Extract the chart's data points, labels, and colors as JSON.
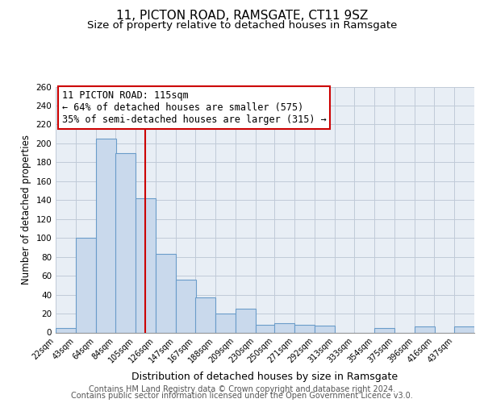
{
  "title1": "11, PICTON ROAD, RAMSGATE, CT11 9SZ",
  "title2": "Size of property relative to detached houses in Ramsgate",
  "xlabel": "Distribution of detached houses by size in Ramsgate",
  "ylabel": "Number of detached properties",
  "bin_labels": [
    "22sqm",
    "43sqm",
    "64sqm",
    "84sqm",
    "105sqm",
    "126sqm",
    "147sqm",
    "167sqm",
    "188sqm",
    "209sqm",
    "230sqm",
    "250sqm",
    "271sqm",
    "292sqm",
    "313sqm",
    "333sqm",
    "354sqm",
    "375sqm",
    "396sqm",
    "416sqm",
    "437sqm"
  ],
  "bin_edges": [
    22,
    43,
    64,
    84,
    105,
    126,
    147,
    167,
    188,
    209,
    230,
    250,
    271,
    292,
    313,
    333,
    354,
    375,
    396,
    416,
    437
  ],
  "bar_heights": [
    5,
    100,
    205,
    190,
    142,
    83,
    56,
    37,
    20,
    25,
    8,
    10,
    8,
    7,
    0,
    0,
    5,
    0,
    6,
    0,
    6
  ],
  "bar_color": "#c9d9ec",
  "bar_edgecolor": "#6a9cc9",
  "bar_linewidth": 0.8,
  "vline_x": 115,
  "vline_color": "#cc0000",
  "vline_linewidth": 1.5,
  "annotation_line1": "11 PICTON ROAD: 115sqm",
  "annotation_line2": "← 64% of detached houses are smaller (575)",
  "annotation_line3": "35% of semi-detached houses are larger (315) →",
  "annotation_box_edgecolor": "#cc0000",
  "annotation_box_facecolor": "white",
  "annotation_fontsize": 8.5,
  "ylim": [
    0,
    260
  ],
  "yticks": [
    0,
    20,
    40,
    60,
    80,
    100,
    120,
    140,
    160,
    180,
    200,
    220,
    240,
    260
  ],
  "grid_color": "#c0cad8",
  "bg_color": "#e8eef5",
  "footer1": "Contains HM Land Registry data © Crown copyright and database right 2024.",
  "footer2": "Contains public sector information licensed under the Open Government Licence v3.0.",
  "footer_fontsize": 7,
  "title1_fontsize": 11,
  "title2_fontsize": 9.5,
  "xlabel_fontsize": 9,
  "ylabel_fontsize": 8.5
}
